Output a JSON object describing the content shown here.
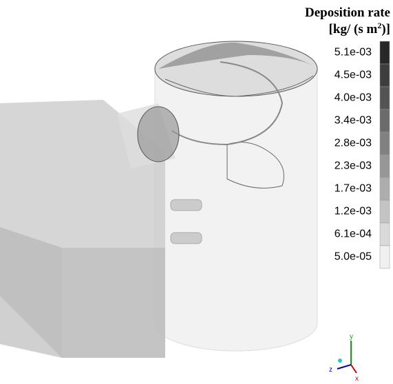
{
  "legend": {
    "title": "Deposition rate",
    "unit": {
      "prefix": "[kg/ (s m",
      "superscript": "2",
      "suffix": ")]"
    },
    "labels": [
      "5.1e-03",
      "4.5e-03",
      "4.0e-03",
      "3.4e-03",
      "2.8e-03",
      "2.3e-03",
      "1.7e-03",
      "1.2e-03",
      "6.1e-04",
      "5.0e-05"
    ]
  },
  "triad": {
    "y": "y",
    "z": "z",
    "x": "x"
  }
}
